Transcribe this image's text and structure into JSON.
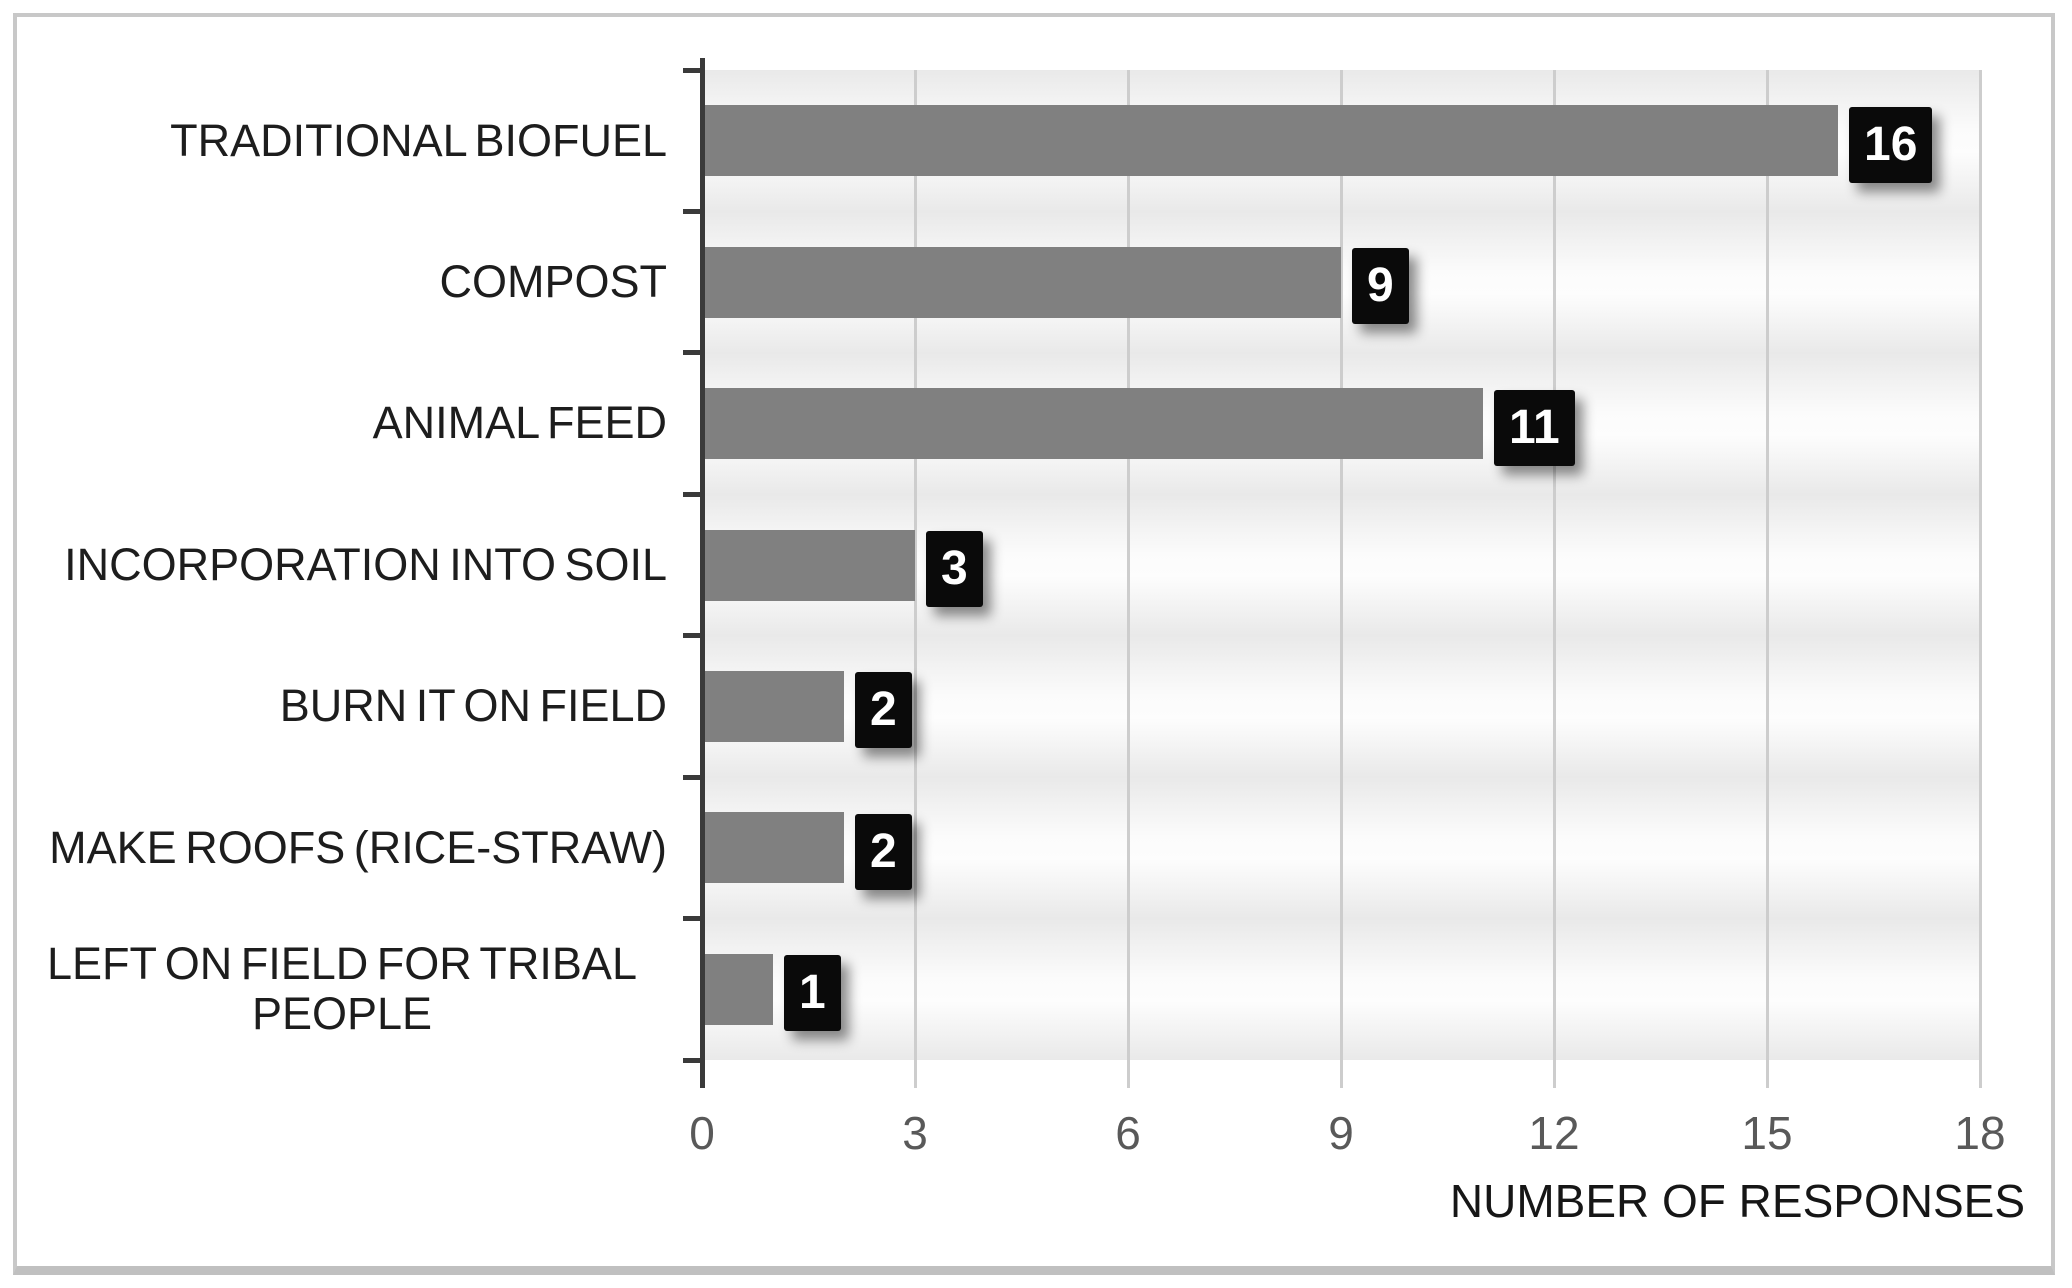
{
  "chart_data": {
    "type": "bar",
    "orientation": "horizontal",
    "categories": [
      "TRADITIONAL BIOFUEL",
      "COMPOST",
      "ANIMAL FEED",
      "INCORPORATION INTO SOIL",
      "BURN IT ON FIELD",
      "MAKE ROOFS (RICE-STRAW)",
      "LEFT ON FIELD FOR TRIBAL PEOPLE"
    ],
    "values": [
      16,
      9,
      11,
      3,
      2,
      2,
      1
    ],
    "data_labels": [
      "16",
      "9",
      "11",
      "3",
      "2",
      "2",
      "1"
    ],
    "title": "",
    "xlabel": "NUMBER OF RESPONSES",
    "ylabel": "",
    "xlim": [
      0,
      18
    ],
    "xticks": [
      0,
      3,
      6,
      9,
      12,
      15,
      18
    ],
    "grid": "vertical-gridlines-every-3",
    "legend": false,
    "colors": {
      "bar": "#808080",
      "data_label_bg": "#0a0a0a",
      "data_label_text": "#ffffff",
      "gridline": "#cdcdcd",
      "axis_line": "#3a3a3a",
      "tick_label_text": "#595959",
      "category_label_text": "#1d1d1d",
      "plot_band_dark": "#e9e9e9",
      "plot_band_light": "#fcfcfc",
      "frame_border": "#c8c8c8"
    }
  }
}
